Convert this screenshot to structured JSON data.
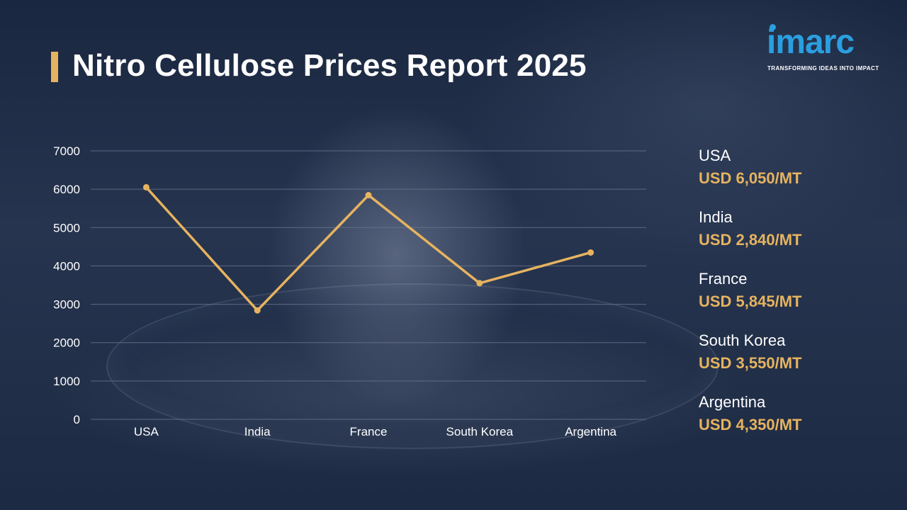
{
  "title": "Nitro Cellulose Prices Report 2025",
  "logo": {
    "name": "imarc",
    "tagline": "TRANSFORMING IDEAS INTO IMPACT"
  },
  "colors": {
    "accent": "#e6b35f",
    "brand": "#2a9fe0",
    "text": "#ffffff",
    "grid": "#6b7791"
  },
  "legend": [
    {
      "country": "USA",
      "price": "USD 6,050/MT"
    },
    {
      "country": "India",
      "price": "USD 2,840/MT"
    },
    {
      "country": "France",
      "price": "USD 5,845/MT"
    },
    {
      "country": "South Korea",
      "price": "USD 3,550/MT"
    },
    {
      "country": "Argentina",
      "price": "USD 4,350/MT"
    }
  ],
  "chart_data": {
    "type": "line",
    "categories": [
      "USA",
      "India",
      "France",
      "South Korea",
      "Argentina"
    ],
    "values": [
      6050,
      2840,
      5845,
      3550,
      4350
    ],
    "ylim": [
      0,
      7000
    ],
    "yticks": [
      0,
      1000,
      2000,
      3000,
      4000,
      5000,
      6000,
      7000
    ],
    "grid": true,
    "legend_position": "none",
    "line_color": "#e6b35f"
  }
}
